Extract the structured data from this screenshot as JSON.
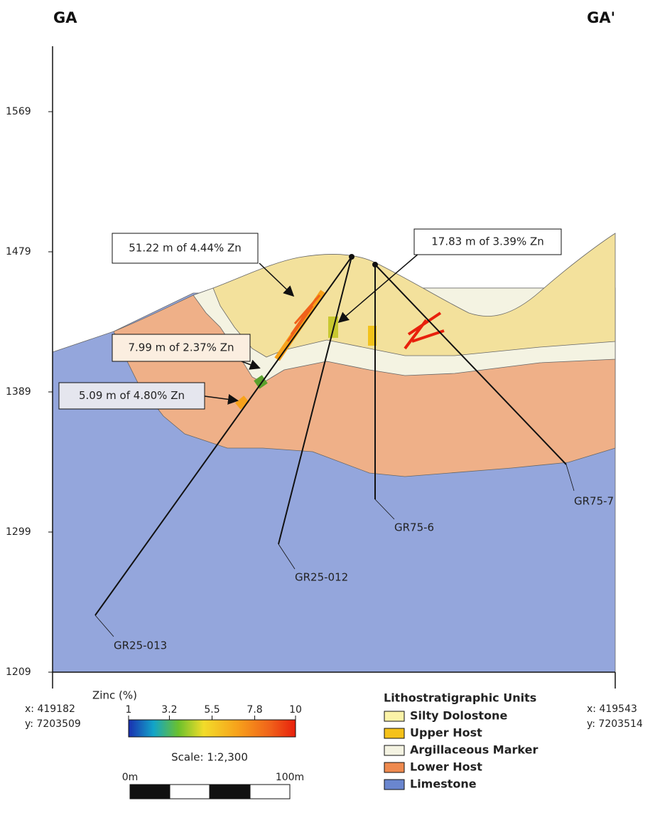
{
  "header": {
    "left": "GA",
    "right": "GA'"
  },
  "elevation_ticks": [
    1569,
    1479,
    1389,
    1299,
    1209
  ],
  "holes": [
    "GR25-013",
    "GR25-012",
    "GR75-6",
    "GR75-7"
  ],
  "callouts": [
    "51.22 m of 4.44% Zn",
    "17.83 m of 3.39% Zn",
    "7.99 m of 2.37% Zn",
    "5.09 m of 4.80% Zn"
  ],
  "coords": {
    "left": [
      "x: 419182",
      "y: 7203509"
    ],
    "right": [
      "x: 419543",
      "y: 7203514"
    ]
  },
  "colorbar": {
    "title": "Zinc (%)",
    "ticks": [
      1,
      3.2,
      5.5,
      7.8,
      10
    ]
  },
  "scale": {
    "label": "Scale: 1:2,300",
    "start": "0m",
    "end": "100m"
  },
  "legend": {
    "title": "Lithostratigraphic Units",
    "items": [
      {
        "label": "Silty Dolostone",
        "color": "#fbf3a8"
      },
      {
        "label": "Upper Host",
        "color": "#f5c21a"
      },
      {
        "label": "Argillaceous Marker",
        "color": "#f4f3e2"
      },
      {
        "label": "Lower Host",
        "color": "#ee8a4f"
      },
      {
        "label": "Limestone",
        "color": "#6a86cf"
      }
    ]
  }
}
